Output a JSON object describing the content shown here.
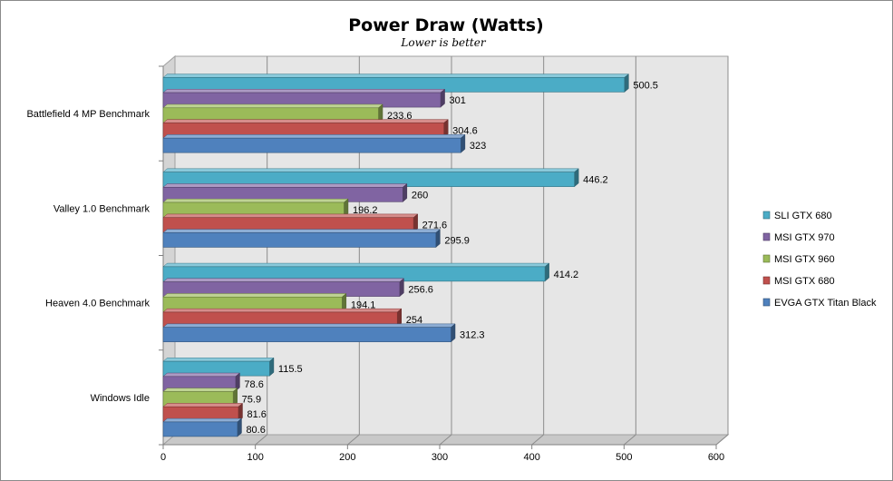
{
  "chart_data": {
    "type": "bar",
    "orientation": "horizontal",
    "title": "Power Draw (Watts)",
    "subtitle": "Lower is better",
    "categories": [
      "Battlefield 4 MP Benchmark",
      "Valley 1.0 Benchmark",
      "Heaven 4.0 Benchmark",
      "Windows Idle"
    ],
    "series": [
      {
        "name": "SLI GTX 680",
        "color": "#4bacc6",
        "values": [
          500.5,
          446.2,
          414.2,
          115.5
        ]
      },
      {
        "name": "MSI GTX 970",
        "color": "#8064a2",
        "values": [
          301,
          260,
          256.6,
          78.6
        ]
      },
      {
        "name": "MSI GTX 960",
        "color": "#9bbb59",
        "values": [
          233.6,
          196.2,
          194.1,
          75.9
        ]
      },
      {
        "name": "MSI GTX 680",
        "color": "#c0504d",
        "values": [
          304.6,
          271.6,
          254,
          81.6
        ]
      },
      {
        "name": "EVGA GTX Titan Black",
        "color": "#4f81bd",
        "values": [
          323,
          295.9,
          312.3,
          80.6
        ]
      }
    ],
    "xlim": [
      0,
      600
    ],
    "xticks": [
      0,
      100,
      200,
      300,
      400,
      500,
      600
    ],
    "grid": true,
    "legend_position": "right",
    "style": "3d"
  }
}
